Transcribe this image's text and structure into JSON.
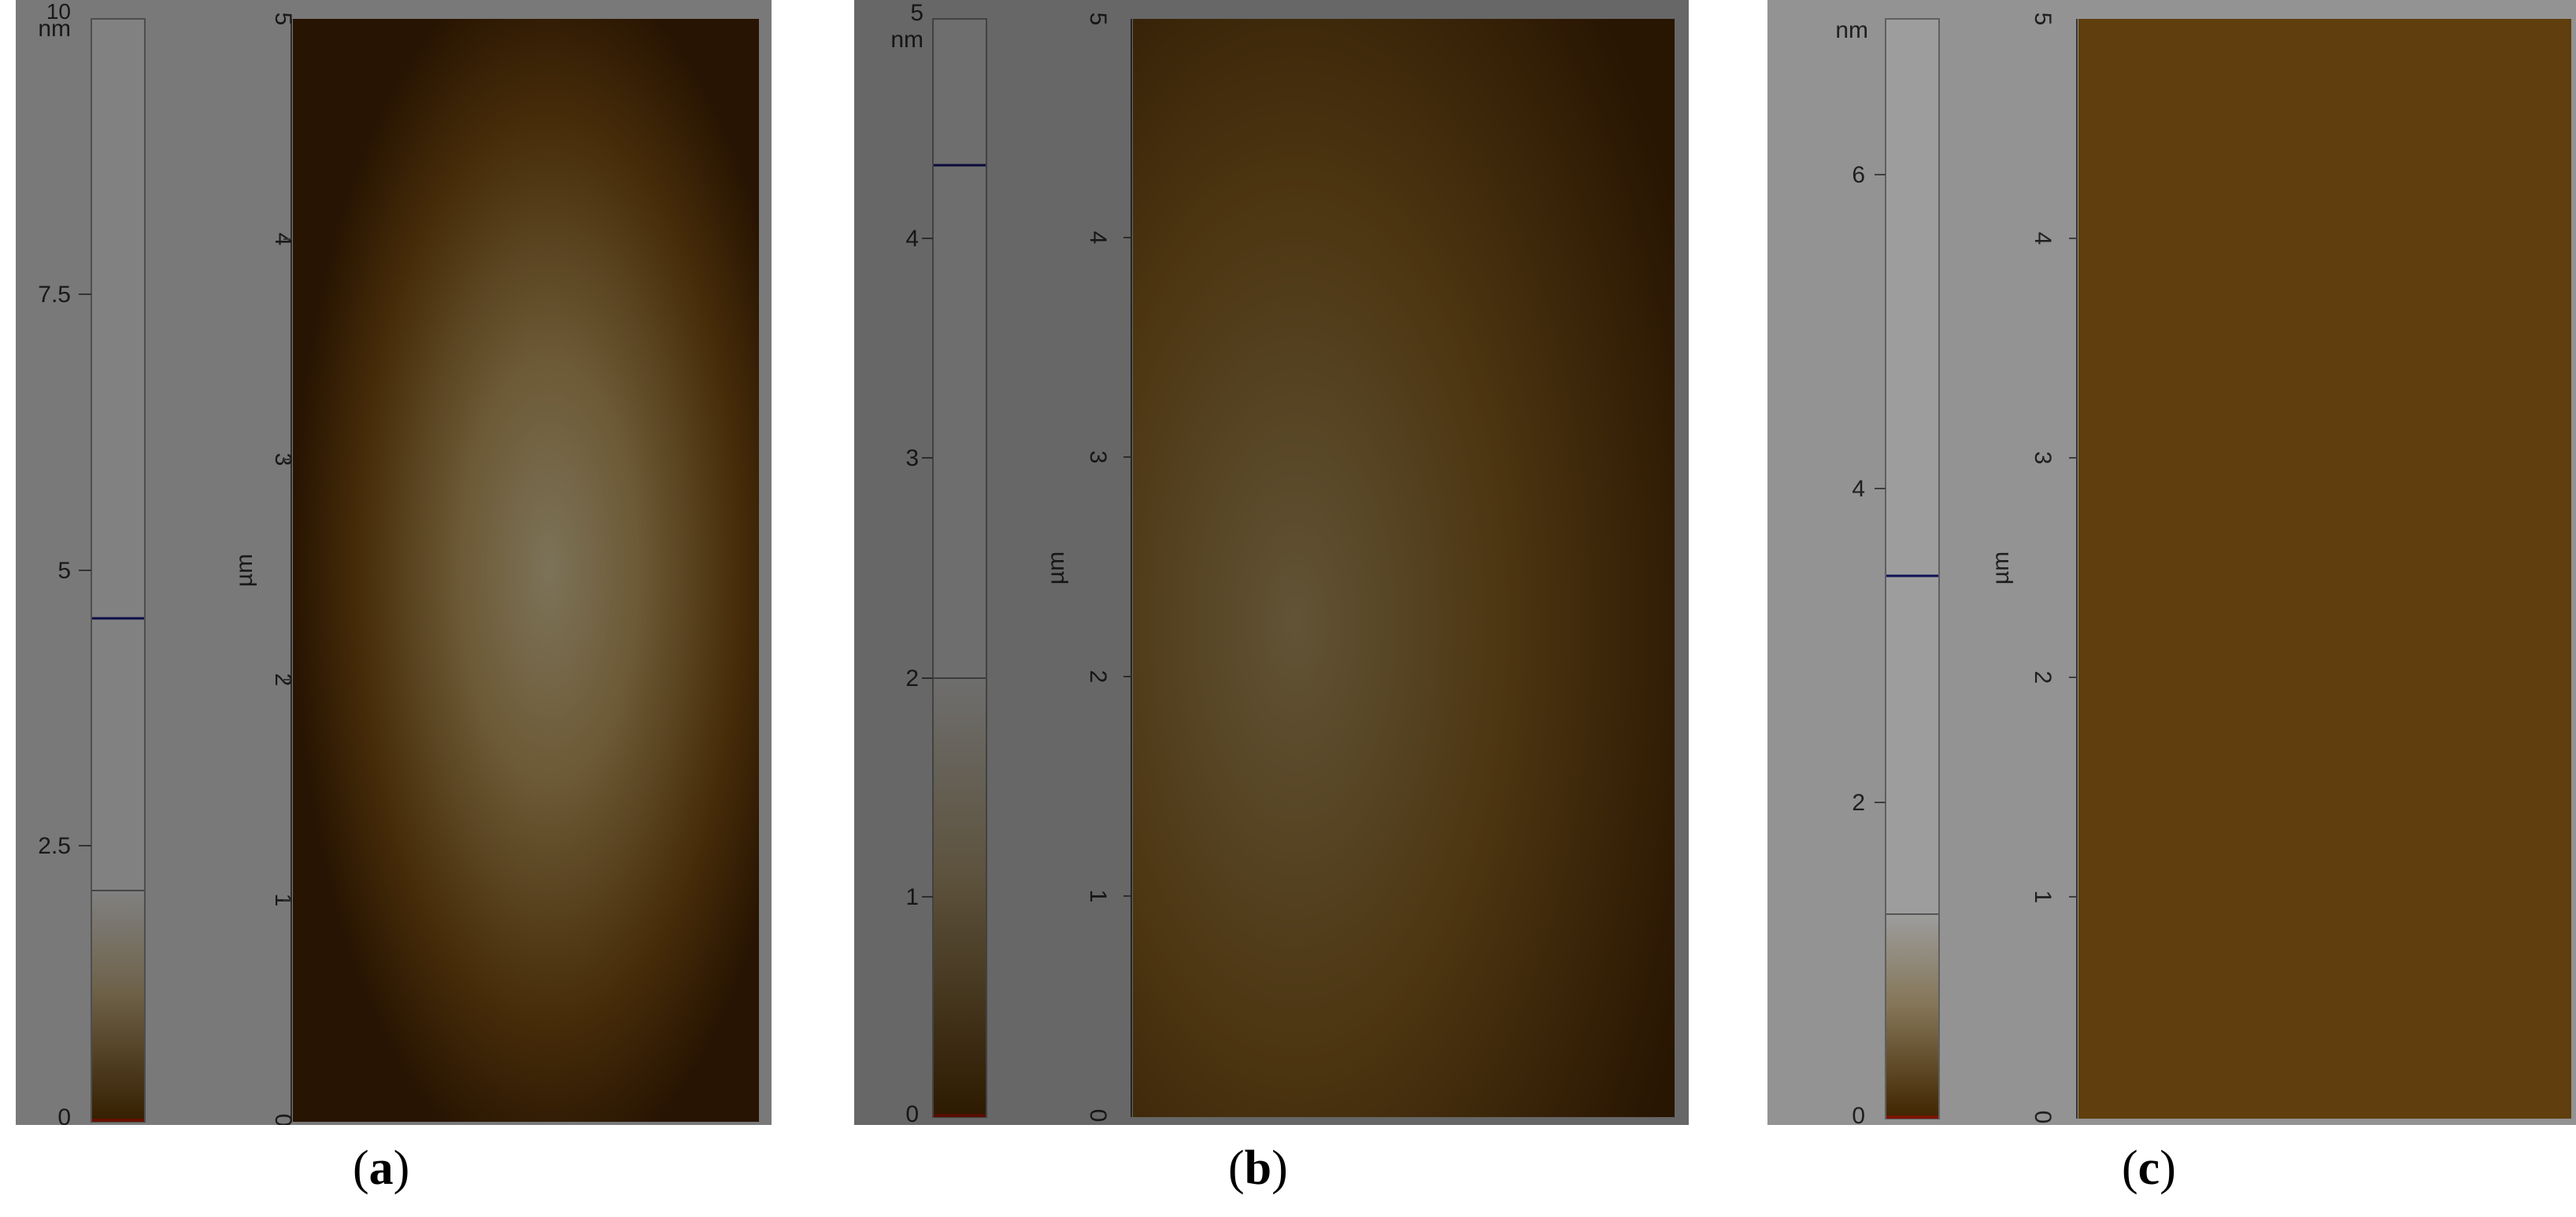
{
  "panels": [
    {
      "id": "a",
      "caption": "a",
      "colorbar": {
        "unit": "nm",
        "ticks": [
          "10",
          "7.5",
          "5",
          "2.5",
          "0"
        ],
        "tick_values": [
          10,
          7.5,
          5,
          2.5,
          0
        ],
        "max": 10,
        "gradient_top_value": 2.1,
        "blue_marker_value": 4.55
      },
      "axis": {
        "unit": "µm",
        "ticks": [
          "0",
          "1",
          "2",
          "3",
          "4",
          "5"
        ],
        "tick_values": [
          0,
          1,
          2,
          3,
          4,
          5
        ],
        "max": 5
      },
      "image_style": "bright central band"
    },
    {
      "id": "b",
      "caption": "b",
      "colorbar": {
        "unit": "nm",
        "ticks": [
          "5",
          "4",
          "3",
          "2",
          "1",
          "0"
        ],
        "tick_values": [
          5,
          4,
          3,
          2,
          1,
          0
        ],
        "max": 5,
        "gradient_top_value": 2.0,
        "blue_marker_value": 4.32
      },
      "axis": {
        "unit": "µm",
        "ticks": [
          "0",
          "1",
          "2",
          "3",
          "4",
          "5"
        ],
        "tick_values": [
          0,
          1,
          2,
          3,
          4,
          5
        ],
        "max": 5
      },
      "image_style": "coarse speckled texture"
    },
    {
      "id": "c",
      "caption": "c",
      "colorbar": {
        "unit": "nm",
        "ticks": [
          "6",
          "4",
          "2",
          "0"
        ],
        "tick_values": [
          6,
          4,
          2,
          0
        ],
        "max": 7,
        "gradient_top_value": 1.3,
        "blue_marker_value": 3.45
      },
      "axis": {
        "unit": "µm",
        "ticks": [
          "0",
          "1",
          "2",
          "3",
          "4",
          "5"
        ],
        "tick_values": [
          0,
          1,
          2,
          3,
          4,
          5
        ],
        "max": 5
      },
      "image_style": "fine uniform texture"
    }
  ],
  "colors": {
    "panel_background": "#efefef",
    "gradient_dark": "#6a3e02",
    "gradient_mid": "#b8862a",
    "gradient_light": "#ffffff",
    "blue_marker": "#1a1a8c",
    "red_marker": "#cc2200",
    "afm_dark": "#4a2403",
    "afm_mid": "#a8701c",
    "afm_light": "#fff2c8"
  }
}
